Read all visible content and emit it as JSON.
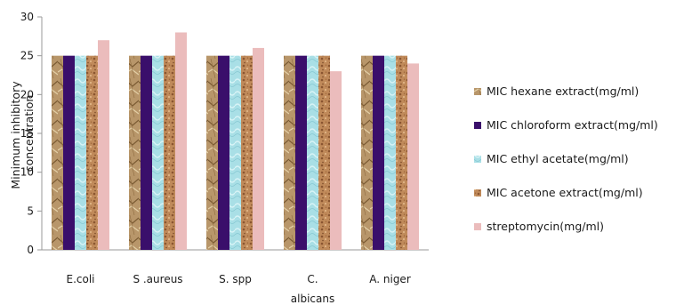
{
  "chart_data": {
    "type": "bar",
    "title": "",
    "xlabel": "",
    "ylabel": [
      "Minimum inhibitory",
      "concentration"
    ],
    "ylim": [
      0,
      30
    ],
    "yticks": [
      0,
      5,
      10,
      15,
      20,
      25,
      30
    ],
    "grid": false,
    "legend_position": "right",
    "categories": [
      [
        "E.coli"
      ],
      [
        "S .aureus"
      ],
      [
        "S. spp"
      ],
      [
        "C.",
        "albicans"
      ],
      [
        "A. niger"
      ]
    ],
    "series": [
      {
        "name": "MIC hexane extract(mg/ml)",
        "color": "#b8966a",
        "texture": "crumpled",
        "values": [
          25,
          25,
          25,
          25,
          25
        ]
      },
      {
        "name": "MIC chloroform extract(mg/ml)",
        "color": "#3a0f6b",
        "texture": "solid",
        "values": [
          25,
          25,
          25,
          25,
          25
        ]
      },
      {
        "name": "MIC ethyl acetate(mg/ml)",
        "color": "#a9dfe6",
        "texture": "ripple",
        "values": [
          25,
          25,
          25,
          25,
          25
        ]
      },
      {
        "name": "MIC acetone extract(mg/ml)",
        "color": "#b67c4f",
        "texture": "cork",
        "values": [
          25,
          25,
          25,
          25,
          25
        ]
      },
      {
        "name": "streptomycin(mg/ml)",
        "color": "#ebbcbc",
        "texture": "solid",
        "values": [
          27,
          28,
          26,
          23,
          24
        ]
      }
    ]
  }
}
